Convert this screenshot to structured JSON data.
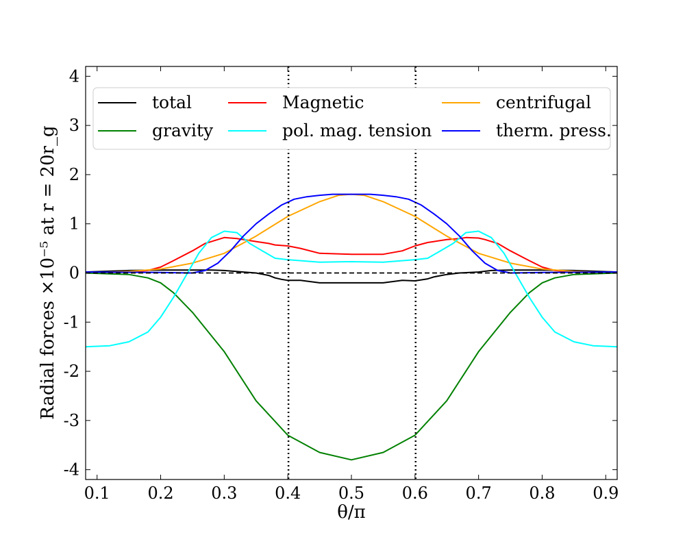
{
  "chart_data": {
    "type": "line",
    "title": "",
    "xlabel": "θ/π",
    "ylabel": "Radial forces ×10⁻⁵ at r = 20r_g",
    "xlim": [
      0.082,
      0.918
    ],
    "ylim": [
      -4.2,
      4.2
    ],
    "xticks": [
      "0.1",
      "0.2",
      "0.3",
      "0.4",
      "0.5",
      "0.6",
      "0.7",
      "0.8",
      "0.9"
    ],
    "yticks": [
      "-4",
      "-3",
      "-2",
      "-1",
      "0",
      "1",
      "2",
      "3",
      "4"
    ],
    "grid": false,
    "legend_position": "top",
    "reference_lines": {
      "horizontal_dashed_y": 0,
      "vertical_dotted_x": [
        0.401,
        0.601
      ]
    },
    "series": [
      {
        "name": "total",
        "color": "#000000",
        "x": [
          0.082,
          0.15,
          0.2,
          0.25,
          0.28,
          0.3,
          0.33,
          0.35,
          0.37,
          0.38,
          0.39,
          0.4,
          0.42,
          0.45,
          0.5,
          0.55,
          0.58,
          0.6,
          0.62,
          0.63,
          0.65,
          0.67,
          0.7,
          0.72,
          0.75,
          0.8,
          0.85,
          0.918
        ],
        "y": [
          0.02,
          0.05,
          0.06,
          0.06,
          0.06,
          0.05,
          0.02,
          0.0,
          -0.05,
          -0.1,
          -0.13,
          -0.15,
          -0.15,
          -0.2,
          -0.2,
          -0.2,
          -0.15,
          -0.16,
          -0.12,
          -0.08,
          -0.03,
          0.0,
          0.02,
          0.05,
          0.06,
          0.06,
          0.05,
          0.02
        ]
      },
      {
        "name": "Magnetic",
        "color": "#ff0000",
        "x": [
          0.082,
          0.15,
          0.18,
          0.2,
          0.22,
          0.25,
          0.27,
          0.29,
          0.3,
          0.32,
          0.33,
          0.35,
          0.37,
          0.38,
          0.4,
          0.42,
          0.45,
          0.5,
          0.55,
          0.58,
          0.6,
          0.62,
          0.63,
          0.65,
          0.67,
          0.68,
          0.7,
          0.71,
          0.73,
          0.75,
          0.78,
          0.8,
          0.82,
          0.85,
          0.918
        ],
        "y": [
          0.0,
          0.02,
          0.05,
          0.12,
          0.25,
          0.45,
          0.6,
          0.68,
          0.72,
          0.7,
          0.68,
          0.64,
          0.6,
          0.57,
          0.55,
          0.5,
          0.4,
          0.38,
          0.38,
          0.45,
          0.55,
          0.62,
          0.64,
          0.68,
          0.7,
          0.72,
          0.71,
          0.68,
          0.6,
          0.45,
          0.25,
          0.12,
          0.05,
          0.02,
          0.0
        ]
      },
      {
        "name": "centrifugal",
        "color": "#ffa500",
        "x": [
          0.082,
          0.15,
          0.2,
          0.25,
          0.3,
          0.35,
          0.4,
          0.45,
          0.48,
          0.5,
          0.52,
          0.55,
          0.6,
          0.65,
          0.7,
          0.75,
          0.8,
          0.85,
          0.918
        ],
        "y": [
          0.0,
          0.03,
          0.08,
          0.2,
          0.4,
          0.75,
          1.15,
          1.45,
          1.58,
          1.6,
          1.58,
          1.45,
          1.15,
          0.75,
          0.4,
          0.2,
          0.08,
          0.03,
          0.0
        ]
      },
      {
        "name": "gravity",
        "color": "#008000",
        "x": [
          0.082,
          0.15,
          0.18,
          0.2,
          0.22,
          0.25,
          0.3,
          0.35,
          0.4,
          0.45,
          0.5,
          0.55,
          0.6,
          0.65,
          0.7,
          0.75,
          0.78,
          0.8,
          0.82,
          0.85,
          0.918
        ],
        "y": [
          0.0,
          -0.03,
          -0.1,
          -0.2,
          -0.4,
          -0.8,
          -1.6,
          -2.6,
          -3.3,
          -3.65,
          -3.8,
          -3.65,
          -3.3,
          -2.6,
          -1.6,
          -0.8,
          -0.4,
          -0.2,
          -0.1,
          -0.03,
          0.0
        ]
      },
      {
        "name": "pol. mag. tension",
        "color": "#00ffff",
        "x": [
          0.082,
          0.12,
          0.15,
          0.18,
          0.2,
          0.22,
          0.24,
          0.26,
          0.28,
          0.3,
          0.32,
          0.34,
          0.36,
          0.38,
          0.4,
          0.45,
          0.5,
          0.55,
          0.6,
          0.62,
          0.64,
          0.66,
          0.68,
          0.7,
          0.72,
          0.74,
          0.76,
          0.78,
          0.8,
          0.82,
          0.85,
          0.88,
          0.918
        ],
        "y": [
          -1.5,
          -1.48,
          -1.4,
          -1.2,
          -0.9,
          -0.5,
          -0.05,
          0.4,
          0.72,
          0.85,
          0.82,
          0.6,
          0.45,
          0.3,
          0.27,
          0.22,
          0.23,
          0.22,
          0.27,
          0.3,
          0.45,
          0.6,
          0.82,
          0.85,
          0.72,
          0.4,
          -0.05,
          -0.5,
          -0.9,
          -1.2,
          -1.4,
          -1.48,
          -1.5
        ]
      },
      {
        "name": "therm. press.",
        "color": "#0000ff",
        "x": [
          0.082,
          0.2,
          0.25,
          0.27,
          0.29,
          0.31,
          0.33,
          0.35,
          0.37,
          0.39,
          0.41,
          0.43,
          0.45,
          0.47,
          0.5,
          0.53,
          0.55,
          0.57,
          0.59,
          0.61,
          0.63,
          0.65,
          0.67,
          0.69,
          0.71,
          0.73,
          0.75,
          0.8,
          0.918
        ],
        "y": [
          0.02,
          0.01,
          0.0,
          0.05,
          0.2,
          0.45,
          0.75,
          1.0,
          1.2,
          1.38,
          1.5,
          1.55,
          1.58,
          1.6,
          1.6,
          1.6,
          1.58,
          1.55,
          1.5,
          1.38,
          1.2,
          1.0,
          0.75,
          0.45,
          0.2,
          0.05,
          0.0,
          0.01,
          0.02
        ]
      }
    ]
  }
}
